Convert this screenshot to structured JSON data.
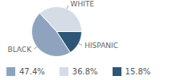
{
  "chart_data": {
    "type": "pie",
    "categories": [
      "BLACK",
      "WHITE",
      "HISPANIC"
    ],
    "values": [
      47.4,
      36.8,
      15.8
    ],
    "value_labels": [
      "47.4%",
      "36.8%",
      "15.8%"
    ],
    "colors": [
      "#8ea3bd",
      "#d5dce6",
      "#2f5677"
    ],
    "legend": "bottom"
  }
}
